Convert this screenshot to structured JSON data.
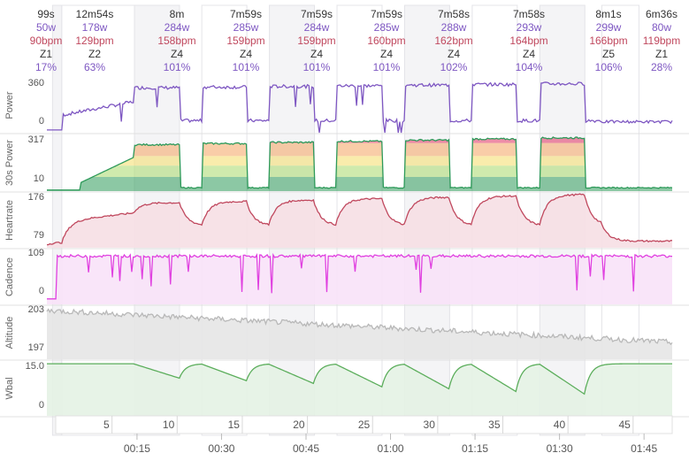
{
  "chart_data": [
    {
      "type": "table",
      "columns": [
        "duration",
        "power",
        "heartrate",
        "zone",
        "percent"
      ],
      "intervals": [
        {
          "duration": "99s",
          "power": "50w",
          "heartrate": "90bpm",
          "zone": "Z1",
          "percent": "17%"
        },
        {
          "duration": "12m54s",
          "power": "178w",
          "heartrate": "129bpm",
          "zone": "Z2",
          "percent": "63%"
        },
        {
          "duration": "8m",
          "power": "284w",
          "heartrate": "158bpm",
          "zone": "Z4",
          "percent": "101%"
        },
        {
          "duration": "7m59s",
          "power": "285w",
          "heartrate": "159bpm",
          "zone": "Z4",
          "percent": "101%"
        },
        {
          "duration": "7m59s",
          "power": "284w",
          "heartrate": "159bpm",
          "zone": "Z4",
          "percent": "101%"
        },
        {
          "duration": "7m59s",
          "power": "285w",
          "heartrate": "160bpm",
          "zone": "Z4",
          "percent": "101%"
        },
        {
          "duration": "7m58s",
          "power": "288w",
          "heartrate": "162bpm",
          "zone": "Z4",
          "percent": "102%"
        },
        {
          "duration": "7m58s",
          "power": "293w",
          "heartrate": "164bpm",
          "zone": "Z4",
          "percent": "104%"
        },
        {
          "duration": "8m1s",
          "power": "299w",
          "heartrate": "166bpm",
          "zone": "Z5",
          "percent": "106%"
        },
        {
          "duration": "6m36s",
          "power": "80w",
          "heartrate": "119bpm",
          "zone": "Z1",
          "percent": "28%"
        }
      ]
    },
    {
      "type": "line",
      "ylabel": "Power",
      "ytick_labels": [
        "360",
        "0"
      ],
      "ylim": [
        0,
        360
      ],
      "color": "#7e57c2"
    },
    {
      "type": "area",
      "ylabel": "30s Power",
      "ytick_labels": [
        "317",
        "10"
      ],
      "ylim": [
        10,
        317
      ],
      "colors": [
        "#2e9a5a",
        "#a8d86a",
        "#f4dc68",
        "#f4a460",
        "#e03060"
      ]
    },
    {
      "type": "area",
      "ylabel": "Heartrate",
      "ytick_labels": [
        "176",
        "79"
      ],
      "ylim": [
        79,
        176
      ],
      "color": "#c0485e"
    },
    {
      "type": "area",
      "ylabel": "Cadence",
      "ytick_labels": [
        "109",
        "0"
      ],
      "ylim": [
        0,
        109
      ],
      "color": "#e040e0"
    },
    {
      "type": "area",
      "ylabel": "Altitude",
      "ytick_labels": [
        "203",
        "197"
      ],
      "ylim": [
        197,
        203
      ],
      "color": "#c8c8c8"
    },
    {
      "type": "area",
      "ylabel": "Wbal",
      "ytick_labels": [
        "15.0",
        "0"
      ],
      "ylim": [
        0,
        15
      ],
      "color": "#5cae5c"
    }
  ],
  "distance_axis": {
    "labels": [
      "5",
      "10",
      "15",
      "20",
      "25",
      "30",
      "35",
      "40",
      "45"
    ],
    "values": [
      5,
      10,
      15,
      20,
      25,
      30,
      35,
      40,
      45
    ]
  },
  "time_axis": {
    "labels": [
      "00:15",
      "00:30",
      "00:45",
      "01:00",
      "01:15",
      "01:30",
      "01:45"
    ],
    "minutes": [
      15,
      30,
      45,
      60,
      75,
      90,
      105
    ]
  }
}
